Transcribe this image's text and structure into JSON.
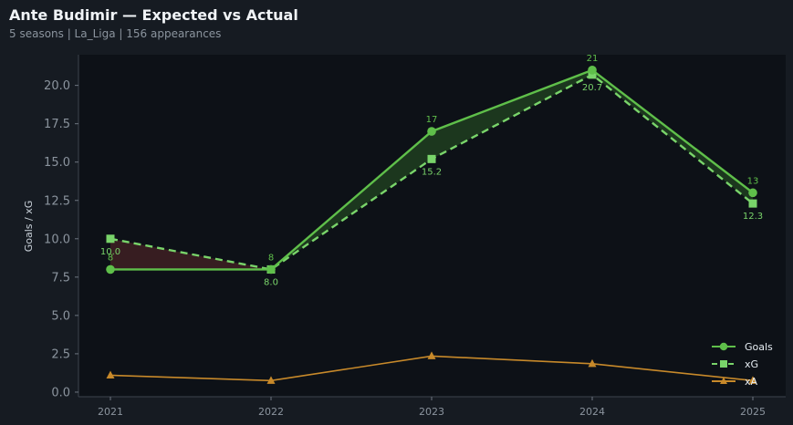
{
  "header": {
    "title": "Ante Budimir — Expected vs Actual",
    "subtitle": "5 seasons | La_Liga | 156 appearances"
  },
  "colors": {
    "goals": "#5fbf4a",
    "xg": "#79d46a",
    "xa": "#c7892a",
    "over_fill": "#1e3a1f",
    "under_fill": "#3a1f22"
  },
  "chart_data": {
    "type": "line",
    "x": [
      "2021",
      "2022",
      "2023",
      "2024",
      "2025"
    ],
    "ylabel": "Goals / xG",
    "ylim": [
      -0.3,
      22
    ],
    "yticks": [
      "0.0",
      "2.5",
      "5.0",
      "7.5",
      "10.0",
      "12.5",
      "15.0",
      "17.5",
      "20.0"
    ],
    "legend_position": "bottom-right",
    "series": [
      {
        "name": "Goals",
        "values": [
          8,
          8,
          17,
          21,
          13
        ],
        "labels": [
          "8",
          "8",
          "17",
          "21",
          "13"
        ]
      },
      {
        "name": "xG",
        "values": [
          10.0,
          8.0,
          15.2,
          20.7,
          12.3
        ],
        "labels": [
          "10.0",
          "8.0",
          "15.2",
          "20.7",
          "12.3"
        ]
      },
      {
        "name": "xA",
        "values": [
          1.1,
          0.75,
          2.35,
          1.85,
          0.75
        ]
      }
    ]
  }
}
